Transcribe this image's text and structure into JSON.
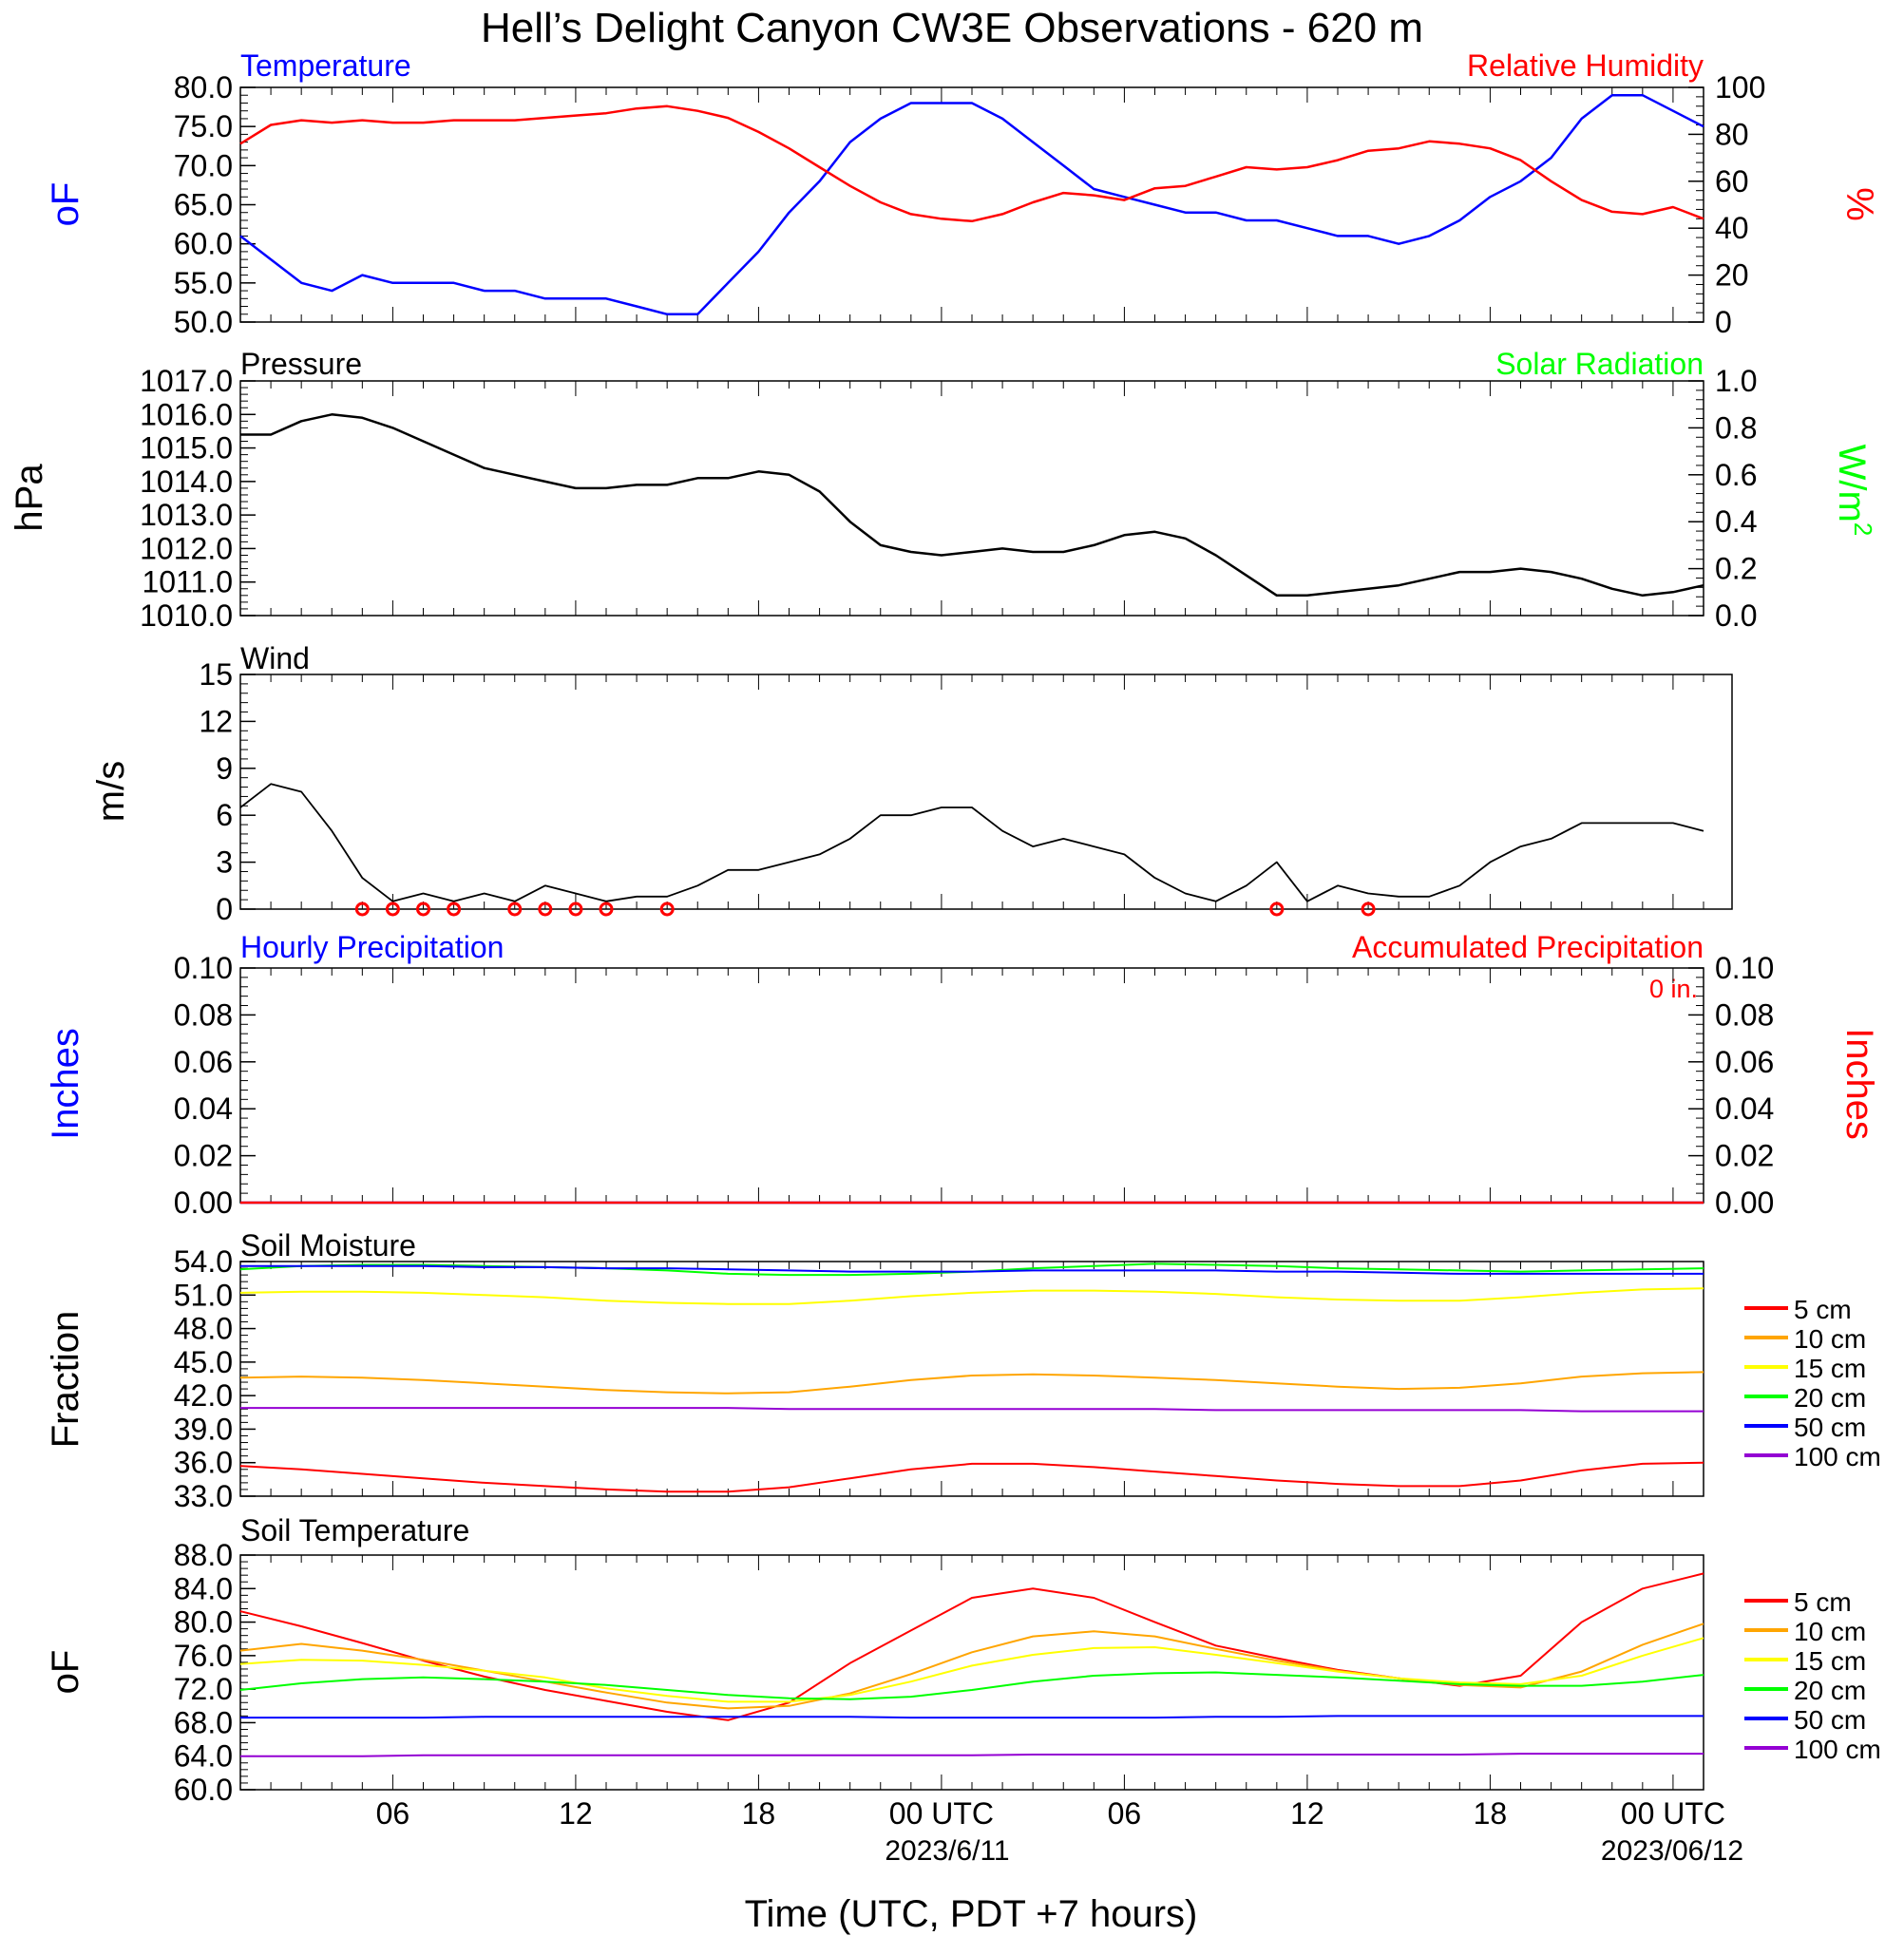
{
  "page": {
    "title": "Hell’s Delight Canyon CW3E Observations - 620 m",
    "xlabel": "Time (UTC, PDT +7 hours)"
  },
  "time_axis": {
    "start": "2023-06-10T01:00Z",
    "end": "2023-06-12T01:00Z",
    "tick_labels": [
      "06",
      "12",
      "18",
      "00 UTC",
      "06",
      "12",
      "18",
      "00 UTC"
    ],
    "date_labels": [
      "2023/6/11",
      "2023/06/12"
    ]
  },
  "colors": {
    "temperature": "#0000ff",
    "humidity": "#ff0000",
    "pressure": "#000000",
    "solar": "#00ff00",
    "hourly_precip": "#0000ff",
    "accum_precip": "#ff0000",
    "depth_5cm": "#ff0000",
    "depth_10cm": "#ffa500",
    "depth_15cm": "#ffff00",
    "depth_20cm": "#00ff00",
    "depth_50cm": "#0000ff",
    "depth_100cm": "#9400d3"
  },
  "panels": {
    "temp_rh": {
      "left_title": "Temperature",
      "right_title": "Relative Humidity",
      "left_unit": "oF",
      "right_unit": "%",
      "left_ticks": [
        "80.0",
        "75.0",
        "70.0",
        "65.0",
        "60.0",
        "55.0",
        "50.0"
      ],
      "right_ticks": [
        "100",
        "80",
        "60",
        "40",
        "20",
        "0"
      ]
    },
    "pressure": {
      "left_title": "Pressure",
      "right_title": "Solar Radiation",
      "left_unit": "hPa",
      "right_unit": "W/m",
      "right_unit_sup": "2",
      "left_ticks": [
        "1017.0",
        "1016.0",
        "1015.0",
        "1014.0",
        "1013.0",
        "1012.0",
        "1011.0",
        "1010.0"
      ],
      "right_ticks": [
        "1.0",
        "0.8",
        "0.6",
        "0.4",
        "0.2",
        "0.0"
      ]
    },
    "wind": {
      "left_title": "Wind",
      "left_unit": "m/s",
      "left_ticks": [
        "15",
        "12",
        "9",
        "6",
        "3",
        "0"
      ]
    },
    "precip": {
      "left_title": "Hourly Precipitation",
      "right_title": "Accumulated Precipitation",
      "accum_label": "0 in.",
      "left_unit": "Inches",
      "right_unit": "Inches",
      "left_ticks": [
        "0.10",
        "0.08",
        "0.06",
        "0.04",
        "0.02",
        "0.00"
      ],
      "right_ticks": [
        "0.10",
        "0.08",
        "0.06",
        "0.04",
        "0.02",
        "0.00"
      ]
    },
    "soil_moisture": {
      "left_title": "Soil Moisture",
      "left_unit": "Fraction",
      "left_ticks": [
        "54.0",
        "51.0",
        "48.0",
        "45.0",
        "42.0",
        "39.0",
        "36.0",
        "33.0"
      ],
      "legend": [
        "5 cm",
        "10 cm",
        "15 cm",
        "20 cm",
        "50 cm",
        "100 cm"
      ]
    },
    "soil_temp": {
      "left_title": "Soil Temperature",
      "left_unit": "oF",
      "left_ticks": [
        "88.0",
        "84.0",
        "80.0",
        "76.0",
        "72.0",
        "68.0",
        "64.0",
        "60.0"
      ],
      "legend": [
        "5 cm",
        "10 cm",
        "15 cm",
        "20 cm",
        "50 cm",
        "100 cm"
      ]
    }
  },
  "chart_data": [
    {
      "type": "line",
      "title": "Temperature / Relative Humidity",
      "x_hours_since_start": [
        0,
        1,
        2,
        3,
        4,
        5,
        6,
        7,
        8,
        9,
        10,
        11,
        12,
        13,
        14,
        15,
        16,
        17,
        18,
        19,
        20,
        21,
        22,
        23,
        24,
        25,
        26,
        27,
        28,
        29,
        30,
        31,
        32,
        33,
        34,
        35,
        36,
        37,
        38,
        39,
        40,
        41,
        42,
        43,
        44,
        45,
        46,
        47,
        48
      ],
      "ylim": [
        50,
        80
      ],
      "y2lim": [
        0,
        100
      ],
      "series": [
        {
          "name": "Temperature",
          "axis": "left",
          "values": [
            61,
            58,
            55,
            54,
            56,
            55,
            55,
            55,
            54,
            54,
            53,
            53,
            53,
            52,
            51,
            51,
            55,
            59,
            64,
            68,
            73,
            76,
            78,
            78,
            78,
            76,
            73,
            70,
            67,
            66,
            65,
            64,
            64,
            63,
            63,
            62,
            61,
            61,
            60,
            61,
            63,
            66,
            68,
            71,
            76,
            79,
            79,
            77,
            75
          ]
        },
        {
          "name": "Relative Humidity",
          "axis": "right",
          "values": [
            76,
            84,
            86,
            85,
            86,
            85,
            85,
            86,
            86,
            86,
            87,
            88,
            89,
            91,
            92,
            90,
            87,
            81,
            74,
            66,
            58,
            51,
            46,
            44,
            43,
            46,
            51,
            55,
            54,
            52,
            57,
            58,
            62,
            66,
            65,
            66,
            69,
            73,
            74,
            77,
            76,
            74,
            69,
            60,
            52,
            47,
            46,
            49,
            44
          ]
        }
      ]
    },
    {
      "type": "line",
      "title": "Pressure",
      "x_hours_since_start": [
        0,
        1,
        2,
        3,
        4,
        5,
        6,
        7,
        8,
        9,
        10,
        11,
        12,
        13,
        14,
        15,
        16,
        17,
        18,
        19,
        20,
        21,
        22,
        23,
        24,
        25,
        26,
        27,
        28,
        29,
        30,
        31,
        32,
        33,
        34,
        35,
        36,
        37,
        38,
        39,
        40,
        41,
        42,
        43,
        44,
        45,
        46,
        47,
        48
      ],
      "ylim": [
        1010,
        1017
      ],
      "y2lim": [
        0,
        1
      ],
      "series": [
        {
          "name": "Pressure",
          "values": [
            1015.4,
            1015.4,
            1015.8,
            1016.0,
            1015.9,
            1015.6,
            1015.2,
            1014.8,
            1014.4,
            1014.2,
            1014.0,
            1013.8,
            1013.8,
            1013.9,
            1013.9,
            1014.1,
            1014.1,
            1014.3,
            1014.2,
            1013.7,
            1012.8,
            1012.1,
            1011.9,
            1011.8,
            1011.9,
            1012.0,
            1011.9,
            1011.9,
            1012.1,
            1012.4,
            1012.5,
            1012.3,
            1011.8,
            1011.2,
            1010.6,
            1010.6,
            1010.7,
            1010.8,
            1010.9,
            1011.1,
            1011.3,
            1011.3,
            1011.4,
            1011.3,
            1011.1,
            1010.8,
            1010.6,
            1010.7,
            1010.9
          ]
        }
      ]
    },
    {
      "type": "line",
      "title": "Wind",
      "x_hours_since_start": [
        0,
        1,
        2,
        3,
        4,
        5,
        6,
        7,
        8,
        9,
        10,
        11,
        12,
        13,
        14,
        15,
        16,
        17,
        18,
        19,
        20,
        21,
        22,
        23,
        24,
        25,
        26,
        27,
        28,
        29,
        30,
        31,
        32,
        33,
        34,
        35,
        36,
        37,
        38,
        39,
        40,
        41,
        42,
        43,
        44,
        45,
        46,
        47,
        48
      ],
      "ylim": [
        0,
        15
      ],
      "series": [
        {
          "name": "Wind speed",
          "values": [
            6.5,
            8,
            7.5,
            5,
            2,
            0.5,
            1,
            0.5,
            1,
            0.5,
            1.5,
            1,
            0.5,
            0.8,
            0.8,
            1.5,
            2.5,
            2.5,
            3,
            3.5,
            4.5,
            6,
            6,
            6.5,
            6.5,
            5,
            4,
            4.5,
            4,
            3.5,
            2,
            1,
            0.5,
            1.5,
            3,
            0.5,
            1.5,
            1,
            0.8,
            0.8,
            1.5,
            3,
            4,
            4.5,
            5.5,
            5.5,
            5.5,
            5.5,
            5
          ]
        }
      ],
      "calm_markers_hours": [
        4,
        5,
        6,
        7,
        9,
        10,
        11,
        12,
        14,
        34,
        37
      ]
    },
    {
      "type": "line",
      "title": "Precipitation",
      "x_hours_since_start": [
        0,
        48
      ],
      "ylim": [
        0,
        0.1
      ],
      "series": [
        {
          "name": "Hourly Precipitation",
          "values": [
            0,
            0
          ]
        },
        {
          "name": "Accumulated Precipitation",
          "values": [
            0,
            0
          ]
        }
      ]
    },
    {
      "type": "line",
      "title": "Soil Moisture",
      "x_hours_since_start": [
        0,
        2,
        4,
        6,
        8,
        10,
        12,
        14,
        16,
        18,
        20,
        22,
        24,
        26,
        28,
        30,
        32,
        34,
        36,
        38,
        40,
        42,
        44,
        46,
        48
      ],
      "ylim": [
        33,
        54
      ],
      "series": [
        {
          "name": "5 cm",
          "values": [
            35.7,
            35.4,
            35.0,
            34.6,
            34.2,
            33.9,
            33.6,
            33.4,
            33.4,
            33.8,
            34.6,
            35.4,
            35.9,
            35.9,
            35.6,
            35.2,
            34.8,
            34.4,
            34.1,
            33.9,
            33.9,
            34.4,
            35.3,
            35.9,
            36.0
          ]
        },
        {
          "name": "10 cm",
          "values": [
            43.6,
            43.7,
            43.6,
            43.4,
            43.1,
            42.8,
            42.5,
            42.3,
            42.2,
            42.3,
            42.8,
            43.4,
            43.8,
            43.9,
            43.8,
            43.6,
            43.4,
            43.1,
            42.8,
            42.6,
            42.7,
            43.1,
            43.7,
            44.0,
            44.1
          ]
        },
        {
          "name": "15 cm",
          "values": [
            51.2,
            51.3,
            51.3,
            51.2,
            51.0,
            50.8,
            50.5,
            50.3,
            50.2,
            50.2,
            50.5,
            50.9,
            51.2,
            51.4,
            51.4,
            51.3,
            51.1,
            50.8,
            50.6,
            50.5,
            50.5,
            50.8,
            51.2,
            51.5,
            51.6
          ]
        },
        {
          "name": "20 cm",
          "values": [
            53.3,
            53.6,
            53.7,
            53.7,
            53.6,
            53.5,
            53.4,
            53.2,
            52.9,
            52.8,
            52.8,
            52.9,
            53.1,
            53.4,
            53.6,
            53.8,
            53.7,
            53.6,
            53.4,
            53.3,
            53.2,
            53.1,
            53.2,
            53.3,
            53.4
          ]
        },
        {
          "name": "50 cm",
          "values": [
            53.6,
            53.6,
            53.6,
            53.6,
            53.5,
            53.5,
            53.4,
            53.4,
            53.3,
            53.2,
            53.1,
            53.1,
            53.1,
            53.2,
            53.2,
            53.2,
            53.2,
            53.1,
            53.1,
            53.0,
            52.9,
            52.9,
            52.9,
            52.9,
            52.9
          ]
        },
        {
          "name": "100 cm",
          "values": [
            40.9,
            40.9,
            40.9,
            40.9,
            40.9,
            40.9,
            40.9,
            40.9,
            40.9,
            40.8,
            40.8,
            40.8,
            40.8,
            40.8,
            40.8,
            40.8,
            40.7,
            40.7,
            40.7,
            40.7,
            40.7,
            40.7,
            40.6,
            40.6,
            40.6
          ]
        }
      ]
    },
    {
      "type": "line",
      "title": "Soil Temperature",
      "x_hours_since_start": [
        0,
        2,
        4,
        6,
        8,
        10,
        12,
        14,
        16,
        18,
        20,
        22,
        24,
        26,
        28,
        30,
        32,
        34,
        36,
        38,
        40,
        42,
        44,
        46,
        48
      ],
      "ylim": [
        60,
        88
      ],
      "series": [
        {
          "name": "5 cm",
          "values": [
            81.3,
            79.5,
            77.5,
            75.4,
            73.5,
            71.9,
            70.6,
            69.3,
            68.3,
            70.4,
            75.1,
            79.0,
            82.9,
            84.0,
            82.9,
            80.0,
            77.2,
            75.7,
            74.3,
            73.3,
            72.4,
            73.6,
            80.0,
            84.0,
            85.8
          ]
        },
        {
          "name": "10 cm",
          "values": [
            76.6,
            77.4,
            76.6,
            75.5,
            74.2,
            72.9,
            71.6,
            70.4,
            69.7,
            70.0,
            71.5,
            73.8,
            76.4,
            78.3,
            78.9,
            78.3,
            76.8,
            75.4,
            74.2,
            73.3,
            72.5,
            72.2,
            74.1,
            77.3,
            79.8
          ]
        },
        {
          "name": "15 cm",
          "values": [
            75.0,
            75.5,
            75.4,
            74.9,
            74.2,
            73.4,
            72.1,
            71.2,
            70.5,
            70.5,
            71.3,
            72.9,
            74.8,
            76.1,
            76.9,
            77.0,
            76.1,
            75.1,
            74.1,
            73.3,
            72.8,
            72.6,
            73.6,
            76.0,
            78.1
          ]
        },
        {
          "name": "20 cm",
          "values": [
            71.9,
            72.7,
            73.2,
            73.4,
            73.2,
            72.9,
            72.5,
            71.9,
            71.3,
            70.9,
            70.8,
            71.1,
            71.9,
            72.9,
            73.6,
            73.9,
            74.0,
            73.7,
            73.4,
            73.0,
            72.6,
            72.4,
            72.4,
            72.9,
            73.7
          ]
        },
        {
          "name": "50 cm",
          "values": [
            68.6,
            68.6,
            68.6,
            68.6,
            68.7,
            68.7,
            68.7,
            68.7,
            68.7,
            68.7,
            68.7,
            68.6,
            68.6,
            68.6,
            68.6,
            68.6,
            68.7,
            68.7,
            68.8,
            68.8,
            68.8,
            68.8,
            68.8,
            68.8,
            68.8
          ]
        },
        {
          "name": "100 cm",
          "values": [
            64.0,
            64.0,
            64.0,
            64.1,
            64.1,
            64.1,
            64.1,
            64.1,
            64.1,
            64.1,
            64.1,
            64.1,
            64.1,
            64.2,
            64.2,
            64.2,
            64.2,
            64.2,
            64.2,
            64.2,
            64.2,
            64.3,
            64.3,
            64.3,
            64.3
          ]
        }
      ]
    }
  ]
}
